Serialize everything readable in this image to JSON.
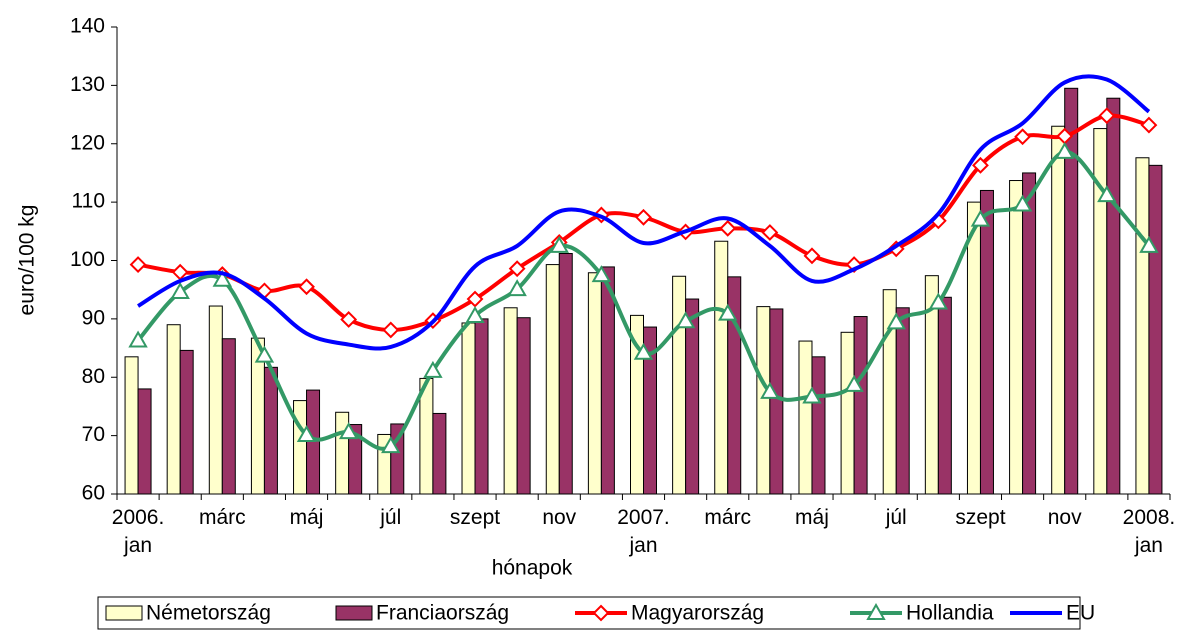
{
  "chart_data": {
    "type": "bar_line",
    "y_label": "euro/100 kg",
    "x_label": "hónapok",
    "categories": [
      "2006.\njan",
      null,
      "márc",
      null,
      "máj",
      null,
      "júl",
      null,
      "szept",
      null,
      "nov",
      null,
      "2007.\njan",
      null,
      "márc",
      null,
      "máj",
      null,
      "júl",
      null,
      "szept",
      null,
      "nov",
      null,
      "2008.\njan"
    ],
    "ylim": [
      60,
      140
    ],
    "yticks": [
      60,
      70,
      80,
      90,
      100,
      110,
      120,
      130,
      140
    ],
    "grid": false,
    "legend": "bottom",
    "series": [
      {
        "name": "Németország",
        "kind": "bar",
        "color": "#ffffcc",
        "values": [
          83.5,
          89,
          92.2,
          86.7,
          76,
          74,
          70.2,
          79.8,
          89.3,
          91.9,
          99.3,
          97.9,
          90.6,
          97.3,
          103.3,
          92.1,
          86.2,
          87.7,
          95,
          97.4,
          110,
          113.7,
          123,
          122.6,
          117.6
        ]
      },
      {
        "name": "Franciaország",
        "kind": "bar",
        "color": "#993366",
        "values": [
          78,
          84.6,
          86.6,
          81.7,
          77.8,
          71.9,
          72,
          73.8,
          90,
          90.2,
          101.2,
          98.9,
          88.6,
          93.4,
          97.2,
          91.7,
          83.5,
          90.4,
          91.9,
          93.7,
          112,
          115,
          129.5,
          127.8,
          116.3
        ]
      },
      {
        "name": "Magyarország",
        "kind": "line",
        "marker": "diamond",
        "color": "#ff0000",
        "values": [
          99.3,
          98,
          97.6,
          94.8,
          95.5,
          89.9,
          88.1,
          89.7,
          93.4,
          98.6,
          103.1,
          107.8,
          107.4,
          104.9,
          105.5,
          104.8,
          100.8,
          99.3,
          102,
          106.8,
          116.3,
          121.2,
          121.3,
          124.8,
          123.2
        ]
      },
      {
        "name": "Hollandia",
        "kind": "line",
        "marker": "triangle",
        "color": "#339966",
        "values": [
          86.3,
          94.6,
          96.7,
          83.7,
          70.1,
          70.6,
          68.2,
          81.1,
          90.5,
          95.1,
          102.5,
          97.5,
          84.2,
          89.6,
          90.9,
          77.5,
          76.7,
          78.7,
          89.4,
          92.8,
          107,
          109.6,
          118.6,
          111.2,
          102.5
        ]
      },
      {
        "name": "EU",
        "kind": "line",
        "marker": "none",
        "color": "#0000ff",
        "values": [
          92.2,
          96.5,
          97.8,
          93.5,
          87.5,
          85.6,
          85.2,
          89.5,
          99,
          102.5,
          108.4,
          107.5,
          103,
          105,
          107.2,
          102.5,
          96.5,
          98.5,
          102.5,
          108,
          119,
          123.5,
          130.5,
          131,
          125.5
        ]
      }
    ]
  }
}
